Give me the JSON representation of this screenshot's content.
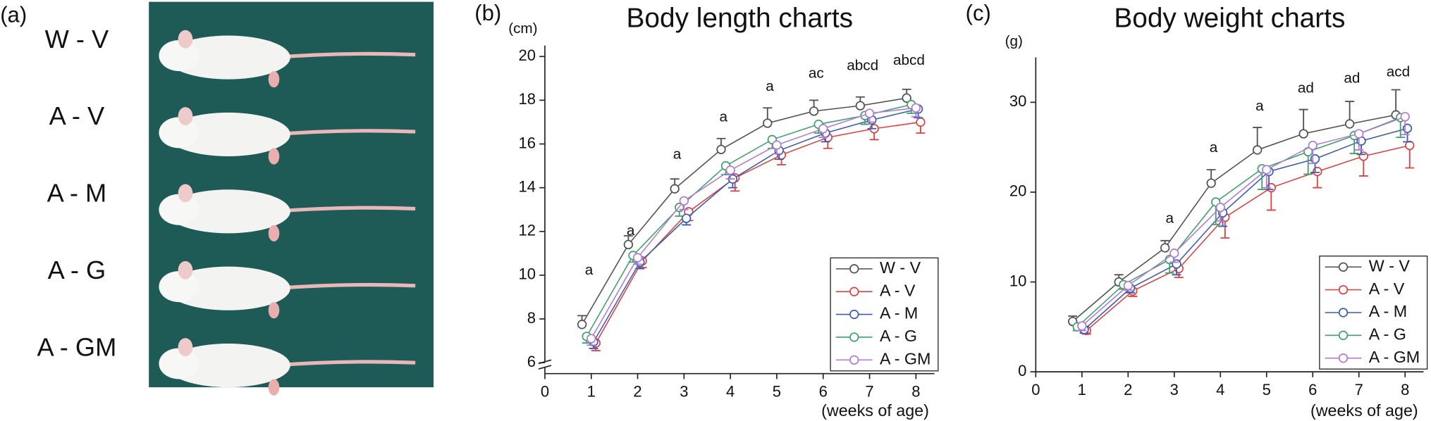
{
  "photo_panel": {
    "label": "(a)",
    "labels": [
      "W - V",
      "A - V",
      "A - M",
      "A - G",
      "A - GM"
    ]
  },
  "chart_data": [
    {
      "type": "line",
      "panel_label": "(b)",
      "title": "Body length charts",
      "y_label": "(cm)",
      "x_label": "(weeks of age)",
      "xlim": [
        0,
        8.4
      ],
      "xticks": [
        0,
        1,
        2,
        3,
        4,
        5,
        6,
        7,
        8
      ],
      "ylim": [
        5.5,
        20.5
      ],
      "yticks": [
        6,
        8,
        10,
        12,
        14,
        16,
        18,
        20
      ],
      "axis_break": true,
      "legend": "lower right",
      "series": [
        {
          "name": "W - V",
          "color": "#505050",
          "error_side": "up",
          "x": [
            0.8,
            1.8,
            2.8,
            3.8,
            4.8,
            5.8,
            6.8,
            7.8
          ],
          "values": [
            7.75,
            11.4,
            13.95,
            15.75,
            16.95,
            17.5,
            17.75,
            18.1
          ],
          "errors": [
            0.4,
            0.4,
            0.45,
            0.5,
            0.7,
            0.5,
            0.4,
            0.4
          ]
        },
        {
          "name": "A - V",
          "color": "#e04040",
          "error_side": "down",
          "x": [
            1.1,
            2.1,
            3.1,
            4.1,
            5.1,
            6.1,
            7.1,
            8.1
          ],
          "values": [
            6.9,
            10.65,
            12.9,
            14.45,
            15.5,
            16.3,
            16.7,
            17.0
          ],
          "errors": [
            0.35,
            0.3,
            0.4,
            0.6,
            0.45,
            0.5,
            0.5,
            0.5
          ]
        },
        {
          "name": "A - M",
          "color": "#3b5bb0",
          "error_side": "down",
          "x": [
            1.05,
            2.05,
            3.05,
            4.05,
            5.05,
            6.05,
            7.05,
            8.05
          ],
          "values": [
            6.95,
            10.6,
            12.6,
            14.4,
            15.7,
            16.5,
            17.1,
            17.6
          ],
          "errors": [
            0.3,
            0.3,
            0.3,
            0.4,
            0.4,
            0.4,
            0.4,
            0.4
          ]
        },
        {
          "name": "A - G",
          "color": "#3fa06a",
          "error_side": "down",
          "x": [
            0.9,
            1.9,
            2.9,
            3.9,
            4.9,
            5.9,
            6.9,
            7.9
          ],
          "values": [
            7.2,
            10.9,
            13.1,
            15.0,
            16.2,
            16.9,
            17.3,
            17.8
          ],
          "errors": [
            0.3,
            0.3,
            0.4,
            0.4,
            0.4,
            0.4,
            0.4,
            0.4
          ]
        },
        {
          "name": "A - GM",
          "color": "#b07ad0",
          "error_side": "down",
          "x": [
            1.0,
            2.0,
            3.0,
            4.0,
            5.0,
            6.0,
            7.0,
            8.0
          ],
          "values": [
            7.1,
            10.8,
            13.4,
            14.8,
            15.95,
            16.7,
            17.4,
            17.65
          ],
          "errors": [
            0.3,
            0.3,
            0.4,
            0.4,
            0.4,
            0.4,
            0.4,
            0.4
          ]
        }
      ],
      "annotations": [
        {
          "text": "a",
          "x": 0.95,
          "y": 10.2
        },
        {
          "text": "a",
          "x": 1.85,
          "y": 12.0
        },
        {
          "text": "a",
          "x": 2.85,
          "y": 15.5
        },
        {
          "text": "a",
          "x": 3.85,
          "y": 17.2
        },
        {
          "text": "a",
          "x": 4.85,
          "y": 18.6
        },
        {
          "text": "ac",
          "x": 5.85,
          "y": 19.2
        },
        {
          "text": "abcd",
          "x": 6.85,
          "y": 19.55
        },
        {
          "text": "abcd",
          "x": 7.85,
          "y": 19.8
        }
      ]
    },
    {
      "type": "line",
      "panel_label": "(c)",
      "title": "Body weight charts",
      "y_label": "(g)",
      "x_label": "(weeks of age)",
      "xlim": [
        0,
        8.4
      ],
      "xticks": [
        0,
        1,
        2,
        3,
        4,
        5,
        6,
        7,
        8
      ],
      "ylim": [
        0,
        35
      ],
      "yticks": [
        0,
        10,
        20,
        30
      ],
      "axis_break": false,
      "legend": "lower right",
      "series": [
        {
          "name": "W - V",
          "color": "#505050",
          "error_side": "up",
          "x": [
            0.8,
            1.8,
            2.8,
            3.8,
            4.8,
            5.8,
            6.8,
            7.8
          ],
          "values": [
            5.6,
            10.0,
            13.8,
            21.0,
            24.7,
            26.5,
            27.6,
            28.6
          ],
          "errors": [
            0.6,
            0.8,
            0.8,
            1.5,
            2.5,
            2.7,
            2.5,
            2.8
          ]
        },
        {
          "name": "A - V",
          "color": "#e04040",
          "error_side": "down",
          "x": [
            1.1,
            2.1,
            3.1,
            4.1,
            5.1,
            6.1,
            7.1,
            8.1
          ],
          "values": [
            4.6,
            9.0,
            11.5,
            17.2,
            20.5,
            22.3,
            24.0,
            25.2
          ],
          "errors": [
            0.4,
            0.6,
            1.0,
            2.3,
            2.5,
            1.8,
            2.2,
            2.5
          ]
        },
        {
          "name": "A - M",
          "color": "#3b5bb0",
          "error_side": "down",
          "x": [
            1.05,
            2.05,
            3.05,
            4.05,
            5.05,
            6.05,
            7.05,
            8.05
          ],
          "values": [
            4.7,
            9.3,
            12.0,
            17.7,
            22.3,
            23.7,
            25.7,
            27.1
          ],
          "errors": [
            0.4,
            0.5,
            1.2,
            1.5,
            2.0,
            1.5,
            1.5,
            1.5
          ]
        },
        {
          "name": "A - G",
          "color": "#3fa06a",
          "error_side": "down",
          "x": [
            0.9,
            1.9,
            2.9,
            3.9,
            4.9,
            5.9,
            6.9,
            7.9
          ],
          "values": [
            5.0,
            9.7,
            12.5,
            18.9,
            22.6,
            24.5,
            26.3,
            28.3
          ],
          "errors": [
            0.4,
            0.5,
            1.5,
            2.5,
            2.3,
            2.5,
            2.0,
            2.2
          ]
        },
        {
          "name": "A - GM",
          "color": "#b07ad0",
          "error_side": "down",
          "x": [
            1.0,
            2.0,
            3.0,
            4.0,
            5.0,
            6.0,
            7.0,
            8.0
          ],
          "values": [
            5.1,
            9.6,
            13.2,
            18.3,
            22.5,
            25.2,
            26.5,
            28.4
          ],
          "errors": [
            0.5,
            0.5,
            1.0,
            1.5,
            2.0,
            2.0,
            1.8,
            2.0
          ]
        }
      ],
      "annotations": [
        {
          "text": "a",
          "x": 2.9,
          "y": 17.0
        },
        {
          "text": "a",
          "x": 3.85,
          "y": 24.9
        },
        {
          "text": "a",
          "x": 4.85,
          "y": 29.5
        },
        {
          "text": "ad",
          "x": 5.85,
          "y": 31.5
        },
        {
          "text": "ad",
          "x": 6.85,
          "y": 32.6
        },
        {
          "text": "acd",
          "x": 7.85,
          "y": 33.3
        }
      ]
    }
  ]
}
